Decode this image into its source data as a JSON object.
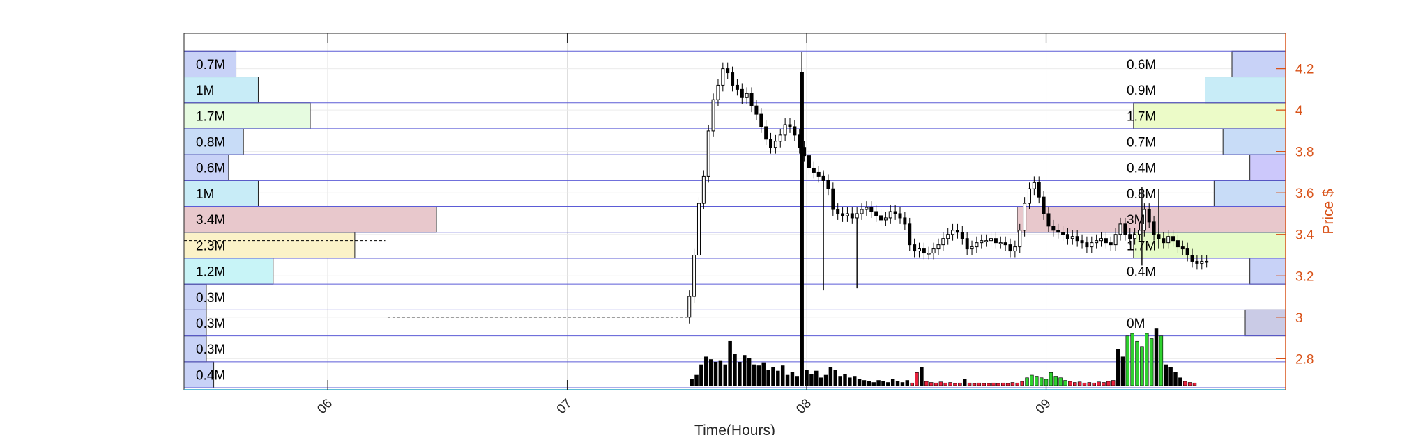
{
  "chart_data": {
    "type": "candlestick",
    "xlabel": "Time(Hours)",
    "ylabel": "Price $",
    "colors": {
      "axis_right": "#d95319",
      "band_line": "#5b5bd6",
      "candle": "#000000",
      "volume_up": "#2fd12f",
      "volume_down": "#e8213d",
      "volume_neutral": "#000000"
    },
    "x_ticks": [
      {
        "label": "06",
        "hour": 6
      },
      {
        "label": "07",
        "hour": 7
      },
      {
        "label": "08",
        "hour": 8
      },
      {
        "label": "09",
        "hour": 9
      }
    ],
    "xlim_hours": [
      5.4,
      10.0
    ],
    "ylim": [
      2.65,
      4.37
    ],
    "y_ticks": [
      {
        "label": "2.8",
        "value": 2.8
      },
      {
        "label": "3",
        "value": 3.0
      },
      {
        "label": "3.2",
        "value": 3.2
      },
      {
        "label": "3.4",
        "value": 3.4
      },
      {
        "label": "3.6",
        "value": 3.6
      },
      {
        "label": "3.8",
        "value": 3.8
      },
      {
        "label": "4",
        "value": 4.0
      },
      {
        "label": "4.2",
        "value": 4.2
      }
    ],
    "price_bands": [
      {
        "lo": 2.66,
        "hi": 2.785
      },
      {
        "lo": 2.785,
        "hi": 2.91
      },
      {
        "lo": 2.91,
        "hi": 3.035
      },
      {
        "lo": 3.035,
        "hi": 3.16
      },
      {
        "lo": 3.16,
        "hi": 3.285
      },
      {
        "lo": 3.285,
        "hi": 3.41
      },
      {
        "lo": 3.41,
        "hi": 3.535
      },
      {
        "lo": 3.535,
        "hi": 3.66
      },
      {
        "lo": 3.66,
        "hi": 3.785
      },
      {
        "lo": 3.785,
        "hi": 3.91
      },
      {
        "lo": 3.91,
        "hi": 4.035
      },
      {
        "lo": 4.035,
        "hi": 4.16
      },
      {
        "lo": 4.16,
        "hi": 4.285
      }
    ],
    "left_volume_profile": [
      {
        "label": "0.4M",
        "value": 0.4,
        "color": "#c8d2f7"
      },
      {
        "label": "0.3M",
        "value": 0.3,
        "color": "#c8d2f7"
      },
      {
        "label": "0.3M",
        "value": 0.3,
        "color": "#c8d2f7"
      },
      {
        "label": "0.3M",
        "value": 0.3,
        "color": "#c8d2f7"
      },
      {
        "label": "1.2M",
        "value": 1.2,
        "color": "#c8f4f7"
      },
      {
        "label": "2.3M",
        "value": 2.3,
        "color": "#fbf2c8"
      },
      {
        "label": "3.4M",
        "value": 3.4,
        "color": "#e8c8cc"
      },
      {
        "label": "1M",
        "value": 1.0,
        "color": "#c8ecf7"
      },
      {
        "label": "0.6M",
        "value": 0.6,
        "color": "#c8d2f7"
      },
      {
        "label": "0.8M",
        "value": 0.8,
        "color": "#c8dcf7"
      },
      {
        "label": "1.7M",
        "value": 1.7,
        "color": "#e6fbe0"
      },
      {
        "label": "1M",
        "value": 1.0,
        "color": "#c8ecf7"
      },
      {
        "label": "0.7M",
        "value": 0.7,
        "color": "#c8d2f7"
      }
    ],
    "right_volume_profile": [
      {
        "label": "",
        "value": 0.0,
        "color": "#c8d2f7"
      },
      {
        "label": "",
        "value": 0.0,
        "color": "#c8d2f7"
      },
      {
        "label": "0M",
        "value": 0.02,
        "color": "#cacbe6"
      },
      {
        "label": "",
        "value": 0.0,
        "color": "#c8d2f7"
      },
      {
        "label": "0.4M",
        "value": 0.4,
        "color": "#c8d2f7"
      },
      {
        "label": "1.7M",
        "value": 1.7,
        "color": "#e6fbc8"
      },
      {
        "label": "3M",
        "value": 3.0,
        "color": "#e8c8cc"
      },
      {
        "label": "0.8M",
        "value": 0.8,
        "color": "#c8dcf7"
      },
      {
        "label": "0.4M",
        "value": 0.4,
        "color": "#ccc8fb"
      },
      {
        "label": "0.7M",
        "value": 0.7,
        "color": "#c8dcf7"
      },
      {
        "label": "1.7M",
        "value": 1.7,
        "color": "#ecfbc8"
      },
      {
        "label": "0.9M",
        "value": 0.9,
        "color": "#c8ecf7"
      },
      {
        "label": "0.6M",
        "value": 0.6,
        "color": "#c8d2f7"
      }
    ],
    "reference_lines": [
      {
        "price": 3.0,
        "from_hour": 6.25,
        "to_hour": 7.5
      },
      {
        "price": 3.37,
        "from_hour": 5.4,
        "to_hour": 6.24
      }
    ],
    "price_path": [
      [
        7.5,
        3.0
      ],
      [
        7.52,
        3.1
      ],
      [
        7.54,
        3.3
      ],
      [
        7.56,
        3.55
      ],
      [
        7.58,
        3.68
      ],
      [
        7.6,
        3.9
      ],
      [
        7.62,
        4.05
      ],
      [
        7.64,
        4.12
      ],
      [
        7.66,
        4.2
      ],
      [
        7.68,
        4.18
      ],
      [
        7.7,
        4.12
      ],
      [
        7.72,
        4.1
      ],
      [
        7.74,
        4.06
      ],
      [
        7.76,
        4.08
      ],
      [
        7.78,
        4.02
      ],
      [
        7.8,
        3.98
      ],
      [
        7.82,
        3.92
      ],
      [
        7.84,
        3.86
      ],
      [
        7.86,
        3.82
      ],
      [
        7.88,
        3.85
      ],
      [
        7.9,
        3.88
      ],
      [
        7.92,
        3.93
      ],
      [
        7.94,
        3.92
      ],
      [
        7.96,
        3.88
      ],
      [
        7.98,
        3.82
      ],
      [
        8.0,
        3.78
      ],
      [
        8.02,
        3.72
      ],
      [
        8.04,
        3.7
      ],
      [
        8.06,
        3.68
      ],
      [
        8.08,
        3.66
      ],
      [
        8.1,
        3.62
      ],
      [
        8.12,
        3.52
      ],
      [
        8.14,
        3.5
      ],
      [
        8.16,
        3.49
      ],
      [
        8.18,
        3.5
      ],
      [
        8.2,
        3.48
      ],
      [
        8.22,
        3.5
      ],
      [
        8.24,
        3.52
      ],
      [
        8.26,
        3.53
      ],
      [
        8.28,
        3.51
      ],
      [
        8.3,
        3.49
      ],
      [
        8.32,
        3.47
      ],
      [
        8.34,
        3.48
      ],
      [
        8.36,
        3.51
      ],
      [
        8.38,
        3.5
      ],
      [
        8.4,
        3.48
      ],
      [
        8.42,
        3.45
      ],
      [
        8.44,
        3.35
      ],
      [
        8.46,
        3.32
      ],
      [
        8.48,
        3.33
      ],
      [
        8.5,
        3.31
      ],
      [
        8.52,
        3.31
      ],
      [
        8.54,
        3.33
      ],
      [
        8.56,
        3.35
      ],
      [
        8.58,
        3.38
      ],
      [
        8.6,
        3.4
      ],
      [
        8.62,
        3.42
      ],
      [
        8.64,
        3.41
      ],
      [
        8.66,
        3.38
      ],
      [
        8.68,
        3.33
      ],
      [
        8.7,
        3.34
      ],
      [
        8.72,
        3.36
      ],
      [
        8.74,
        3.37
      ],
      [
        8.76,
        3.37
      ],
      [
        8.78,
        3.38
      ],
      [
        8.8,
        3.36
      ],
      [
        8.82,
        3.36
      ],
      [
        8.84,
        3.35
      ],
      [
        8.86,
        3.32
      ],
      [
        8.88,
        3.34
      ],
      [
        8.9,
        3.42
      ],
      [
        8.92,
        3.55
      ],
      [
        8.94,
        3.62
      ],
      [
        8.96,
        3.65
      ],
      [
        8.98,
        3.58
      ],
      [
        9.0,
        3.5
      ],
      [
        9.02,
        3.44
      ],
      [
        9.04,
        3.42
      ],
      [
        9.06,
        3.41
      ],
      [
        9.08,
        3.4
      ],
      [
        9.1,
        3.38
      ],
      [
        9.12,
        3.39
      ],
      [
        9.14,
        3.37
      ],
      [
        9.16,
        3.36
      ],
      [
        9.18,
        3.34
      ],
      [
        9.2,
        3.36
      ],
      [
        9.22,
        3.37
      ],
      [
        9.24,
        3.38
      ],
      [
        9.26,
        3.36
      ],
      [
        9.28,
        3.35
      ],
      [
        9.3,
        3.4
      ],
      [
        9.32,
        3.45
      ],
      [
        9.34,
        3.4
      ],
      [
        9.36,
        3.38
      ],
      [
        9.38,
        3.4
      ],
      [
        9.4,
        3.42
      ],
      [
        9.42,
        3.52
      ],
      [
        9.44,
        3.46
      ],
      [
        9.46,
        3.4
      ],
      [
        9.48,
        3.38
      ],
      [
        9.5,
        3.36
      ],
      [
        9.52,
        3.39
      ],
      [
        9.54,
        3.37
      ],
      [
        9.56,
        3.34
      ],
      [
        9.58,
        3.33
      ],
      [
        9.6,
        3.3
      ],
      [
        9.62,
        3.27
      ],
      [
        9.64,
        3.26
      ],
      [
        9.66,
        3.27
      ],
      [
        9.68,
        3.27
      ]
    ],
    "spikes": [
      {
        "hour": 7.98,
        "high": 4.28,
        "low": 3.55
      },
      {
        "hour": 8.07,
        "high": 3.7,
        "low": 3.13
      },
      {
        "hour": 8.21,
        "high": 3.48,
        "low": 3.14
      },
      {
        "hour": 9.4,
        "high": 3.63,
        "low": 3.25
      },
      {
        "hour": 9.47,
        "high": 3.62,
        "low": 3.33
      }
    ],
    "volume_max_ref": 100,
    "volume_bars": [
      {
        "hour": 7.52,
        "v": 12,
        "c": "n"
      },
      {
        "hour": 7.54,
        "v": 20,
        "c": "n"
      },
      {
        "hour": 7.56,
        "v": 40,
        "c": "n"
      },
      {
        "hour": 7.58,
        "v": 55,
        "c": "n"
      },
      {
        "hour": 7.6,
        "v": 50,
        "c": "n"
      },
      {
        "hour": 7.62,
        "v": 45,
        "c": "n"
      },
      {
        "hour": 7.64,
        "v": 48,
        "c": "n"
      },
      {
        "hour": 7.66,
        "v": 40,
        "c": "n"
      },
      {
        "hour": 7.68,
        "v": 85,
        "c": "n"
      },
      {
        "hour": 7.7,
        "v": 60,
        "c": "n"
      },
      {
        "hour": 7.72,
        "v": 45,
        "c": "n"
      },
      {
        "hour": 7.74,
        "v": 58,
        "c": "n"
      },
      {
        "hour": 7.76,
        "v": 52,
        "c": "n"
      },
      {
        "hour": 7.78,
        "v": 40,
        "c": "n"
      },
      {
        "hour": 7.8,
        "v": 38,
        "c": "n"
      },
      {
        "hour": 7.82,
        "v": 44,
        "c": "n"
      },
      {
        "hour": 7.84,
        "v": 30,
        "c": "n"
      },
      {
        "hour": 7.86,
        "v": 35,
        "c": "n"
      },
      {
        "hour": 7.88,
        "v": 28,
        "c": "n"
      },
      {
        "hour": 7.9,
        "v": 38,
        "c": "n"
      },
      {
        "hour": 7.92,
        "v": 20,
        "c": "n"
      },
      {
        "hour": 7.94,
        "v": 25,
        "c": "n"
      },
      {
        "hour": 7.96,
        "v": 18,
        "c": "n"
      },
      {
        "hour": 7.98,
        "v": 600,
        "c": "n"
      },
      {
        "hour": 8.0,
        "v": 30,
        "c": "n"
      },
      {
        "hour": 8.02,
        "v": 22,
        "c": "n"
      },
      {
        "hour": 8.04,
        "v": 28,
        "c": "n"
      },
      {
        "hour": 8.06,
        "v": 15,
        "c": "n"
      },
      {
        "hour": 8.08,
        "v": 20,
        "c": "n"
      },
      {
        "hour": 8.1,
        "v": 35,
        "c": "n"
      },
      {
        "hour": 8.12,
        "v": 30,
        "c": "n"
      },
      {
        "hour": 8.14,
        "v": 18,
        "c": "n"
      },
      {
        "hour": 8.16,
        "v": 22,
        "c": "n"
      },
      {
        "hour": 8.18,
        "v": 15,
        "c": "n"
      },
      {
        "hour": 8.2,
        "v": 18,
        "c": "n"
      },
      {
        "hour": 8.22,
        "v": 12,
        "c": "n"
      },
      {
        "hour": 8.24,
        "v": 10,
        "c": "n"
      },
      {
        "hour": 8.26,
        "v": 8,
        "c": "n"
      },
      {
        "hour": 8.28,
        "v": 6,
        "c": "n"
      },
      {
        "hour": 8.3,
        "v": 10,
        "c": "n"
      },
      {
        "hour": 8.32,
        "v": 8,
        "c": "n"
      },
      {
        "hour": 8.34,
        "v": 6,
        "c": "n"
      },
      {
        "hour": 8.36,
        "v": 12,
        "c": "n"
      },
      {
        "hour": 8.38,
        "v": 8,
        "c": "n"
      },
      {
        "hour": 8.4,
        "v": 6,
        "c": "n"
      },
      {
        "hour": 8.42,
        "v": 10,
        "c": "n"
      },
      {
        "hour": 8.44,
        "v": 5,
        "c": "d"
      },
      {
        "hour": 8.46,
        "v": 25,
        "c": "d"
      },
      {
        "hour": 8.48,
        "v": 35,
        "c": "n"
      },
      {
        "hour": 8.5,
        "v": 8,
        "c": "d"
      },
      {
        "hour": 8.52,
        "v": 6,
        "c": "d"
      },
      {
        "hour": 8.54,
        "v": 5,
        "c": "d"
      },
      {
        "hour": 8.56,
        "v": 7,
        "c": "d"
      },
      {
        "hour": 8.58,
        "v": 5,
        "c": "d"
      },
      {
        "hour": 8.6,
        "v": 6,
        "c": "d"
      },
      {
        "hour": 8.62,
        "v": 4,
        "c": "d"
      },
      {
        "hour": 8.64,
        "v": 5,
        "c": "d"
      },
      {
        "hour": 8.66,
        "v": 12,
        "c": "n"
      },
      {
        "hour": 8.68,
        "v": 5,
        "c": "d"
      },
      {
        "hour": 8.7,
        "v": 4,
        "c": "d"
      },
      {
        "hour": 8.72,
        "v": 5,
        "c": "d"
      },
      {
        "hour": 8.74,
        "v": 4,
        "c": "d"
      },
      {
        "hour": 8.76,
        "v": 4,
        "c": "d"
      },
      {
        "hour": 8.78,
        "v": 5,
        "c": "d"
      },
      {
        "hour": 8.8,
        "v": 4,
        "c": "d"
      },
      {
        "hour": 8.82,
        "v": 5,
        "c": "d"
      },
      {
        "hour": 8.84,
        "v": 4,
        "c": "d"
      },
      {
        "hour": 8.86,
        "v": 6,
        "c": "d"
      },
      {
        "hour": 8.88,
        "v": 5,
        "c": "d"
      },
      {
        "hour": 8.9,
        "v": 8,
        "c": "d"
      },
      {
        "hour": 8.92,
        "v": 15,
        "c": "u"
      },
      {
        "hour": 8.94,
        "v": 20,
        "c": "u"
      },
      {
        "hour": 8.96,
        "v": 18,
        "c": "u"
      },
      {
        "hour": 8.98,
        "v": 15,
        "c": "u"
      },
      {
        "hour": 9.0,
        "v": 12,
        "c": "u"
      },
      {
        "hour": 9.02,
        "v": 25,
        "c": "u"
      },
      {
        "hour": 9.04,
        "v": 18,
        "c": "u"
      },
      {
        "hour": 9.06,
        "v": 15,
        "c": "u"
      },
      {
        "hour": 9.08,
        "v": 10,
        "c": "u"
      },
      {
        "hour": 9.1,
        "v": 8,
        "c": "d"
      },
      {
        "hour": 9.12,
        "v": 6,
        "c": "d"
      },
      {
        "hour": 9.14,
        "v": 7,
        "c": "d"
      },
      {
        "hour": 9.16,
        "v": 5,
        "c": "d"
      },
      {
        "hour": 9.18,
        "v": 6,
        "c": "d"
      },
      {
        "hour": 9.2,
        "v": 5,
        "c": "d"
      },
      {
        "hour": 9.22,
        "v": 7,
        "c": "d"
      },
      {
        "hour": 9.24,
        "v": 6,
        "c": "d"
      },
      {
        "hour": 9.26,
        "v": 8,
        "c": "d"
      },
      {
        "hour": 9.28,
        "v": 10,
        "c": "d"
      },
      {
        "hour": 9.3,
        "v": 70,
        "c": "n"
      },
      {
        "hour": 9.32,
        "v": 55,
        "c": "n"
      },
      {
        "hour": 9.34,
        "v": 95,
        "c": "u"
      },
      {
        "hour": 9.36,
        "v": 100,
        "c": "u"
      },
      {
        "hour": 9.38,
        "v": 85,
        "c": "u"
      },
      {
        "hour": 9.4,
        "v": 75,
        "c": "u"
      },
      {
        "hour": 9.42,
        "v": 100,
        "c": "u"
      },
      {
        "hour": 9.44,
        "v": 90,
        "c": "u"
      },
      {
        "hour": 9.46,
        "v": 110,
        "c": "n"
      },
      {
        "hour": 9.48,
        "v": 95,
        "c": "u"
      },
      {
        "hour": 9.5,
        "v": 40,
        "c": "n"
      },
      {
        "hour": 9.52,
        "v": 35,
        "c": "n"
      },
      {
        "hour": 9.54,
        "v": 25,
        "c": "n"
      },
      {
        "hour": 9.56,
        "v": 15,
        "c": "n"
      },
      {
        "hour": 9.58,
        "v": 8,
        "c": "d"
      },
      {
        "hour": 9.6,
        "v": 6,
        "c": "d"
      },
      {
        "hour": 9.62,
        "v": 5,
        "c": "d"
      }
    ]
  }
}
